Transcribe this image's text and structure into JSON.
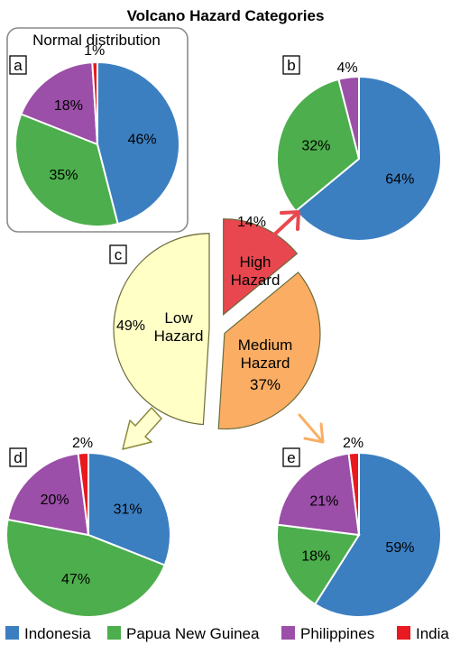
{
  "title": "Volcano Hazard Categories",
  "colors": {
    "Indonesia": "#3c7fc1",
    "Papua New Guinea": "#4cae4c",
    "Philippines": "#9b4fa8",
    "India": "#e8191f",
    "Low Hazard": "#ffffc6",
    "High Hazard": "#e9474f",
    "Medium Hazard": "#fbae63",
    "arrow_high": "#e9474f",
    "arrow_medium": "#fbae63"
  },
  "legend": [
    "Indonesia",
    "Papua New Guinea",
    "Philippines",
    "India"
  ],
  "chart_data": [
    {
      "type": "pie",
      "panel": "a",
      "title": "Normal distribution",
      "labels": [
        "Indonesia",
        "Papua New Guinea",
        "Philippines",
        "India"
      ],
      "values": [
        46,
        35,
        18,
        1
      ],
      "value_labels": [
        "46%",
        "35%",
        "18%",
        "1%"
      ]
    },
    {
      "type": "pie",
      "panel": "b",
      "labels": [
        "Indonesia",
        "Papua New Guinea",
        "Philippines"
      ],
      "values": [
        64,
        32,
        4
      ],
      "value_labels": [
        "64%",
        "32%",
        "4%"
      ]
    },
    {
      "type": "pie",
      "panel": "c",
      "labels": [
        "High Hazard",
        "Medium Hazard",
        "Low Hazard"
      ],
      "values": [
        14,
        37,
        49
      ],
      "value_labels": [
        "14%",
        "37%",
        "49%"
      ],
      "category_labels": [
        "High\nHazard",
        "Medium\nHazard",
        "Low\nHazard"
      ]
    },
    {
      "type": "pie",
      "panel": "d",
      "labels": [
        "Indonesia",
        "Papua New Guinea",
        "Philippines",
        "India"
      ],
      "values": [
        31,
        47,
        20,
        2
      ],
      "value_labels": [
        "31%",
        "47%",
        "20%",
        "2%"
      ]
    },
    {
      "type": "pie",
      "panel": "e",
      "labels": [
        "Indonesia",
        "Papua New Guinea",
        "Philippines",
        "India"
      ],
      "values": [
        59,
        18,
        21,
        2
      ],
      "value_labels": [
        "59%",
        "18%",
        "21%",
        "2%"
      ]
    }
  ]
}
